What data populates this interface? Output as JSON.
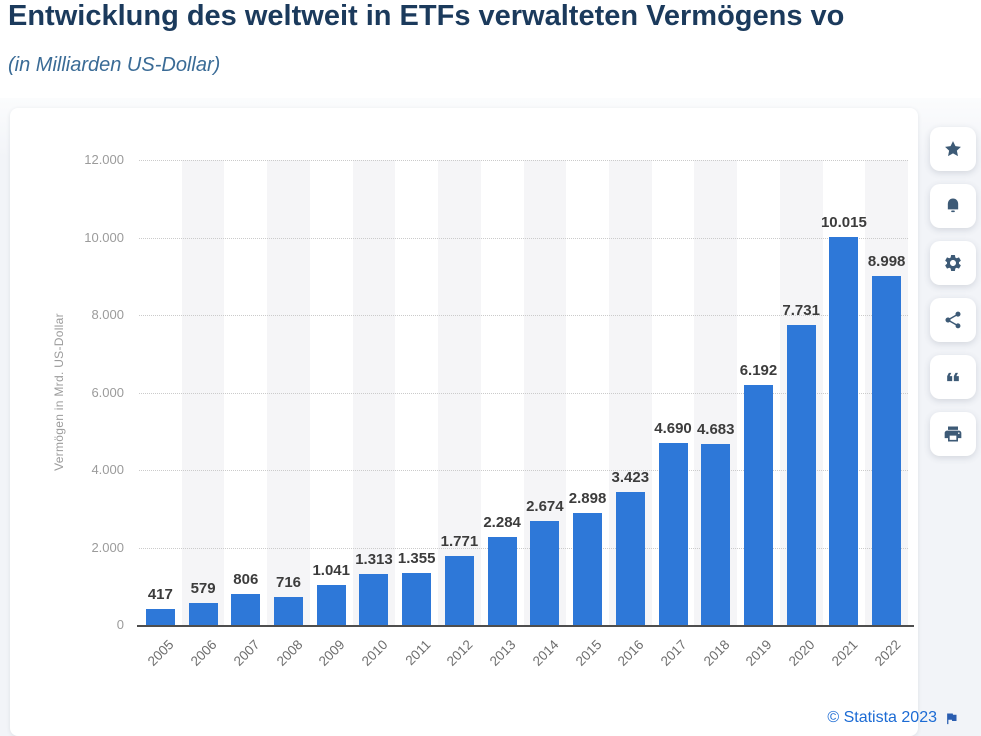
{
  "header": {
    "title": "Entwicklung des weltweit in ETFs verwalteten Vermögens vo",
    "subtitle": "(in Milliarden US-Dollar)"
  },
  "chart_data": {
    "type": "bar",
    "title": "Entwicklung des weltweit in ETFs verwalteten Vermögens vo",
    "subtitle": "(in Milliarden US-Dollar)",
    "categories": [
      "2005",
      "2006",
      "2007",
      "2008",
      "2009",
      "2010",
      "2011",
      "2012",
      "2013",
      "2014",
      "2015",
      "2016",
      "2017",
      "2018",
      "2019",
      "2020",
      "2021",
      "2022"
    ],
    "values": [
      417,
      579,
      806,
      716,
      1041,
      1313,
      1355,
      1771,
      2284,
      2674,
      2898,
      3423,
      4690,
      4683,
      6192,
      7731,
      10015,
      8998
    ],
    "value_labels": [
      "417",
      "579",
      "806",
      "716",
      "1.041",
      "1.313",
      "1.355",
      "1.771",
      "2.284",
      "2.674",
      "2.898",
      "3.423",
      "4.690",
      "4.683",
      "6.192",
      "7.731",
      "10.015",
      "8.998"
    ],
    "xlabel": "",
    "ylabel": "Vermögen in Mrd. US-Dollar",
    "ylim": [
      0,
      12000
    ],
    "ytick_step": 2000,
    "yticks": [
      "0",
      "2.000",
      "4.000",
      "6.000",
      "8.000",
      "10.000",
      "12.000"
    ],
    "grid": "horizontal dotted, alternating vertical bands",
    "legend": "none",
    "bar_color": "#2e78d8",
    "band_color": "#f5f5f7"
  },
  "sidebar": {
    "buttons": [
      {
        "id": "favorite",
        "icon": "star-icon"
      },
      {
        "id": "alerts",
        "icon": "bell-icon"
      },
      {
        "id": "settings",
        "icon": "gear-icon"
      },
      {
        "id": "share",
        "icon": "share-icon"
      },
      {
        "id": "cite",
        "icon": "quote-icon"
      },
      {
        "id": "print",
        "icon": "printer-icon"
      }
    ]
  },
  "footer": {
    "copyright": "© Statista 2023"
  },
  "colors": {
    "title": "#1b3a5c",
    "subtitle": "#3a6b96",
    "bar": "#2e78d8",
    "link": "#1c6bd4",
    "icon": "#3d5a76",
    "axis_line": "#4e4e4e",
    "tick_text": "#9b9b9b"
  }
}
